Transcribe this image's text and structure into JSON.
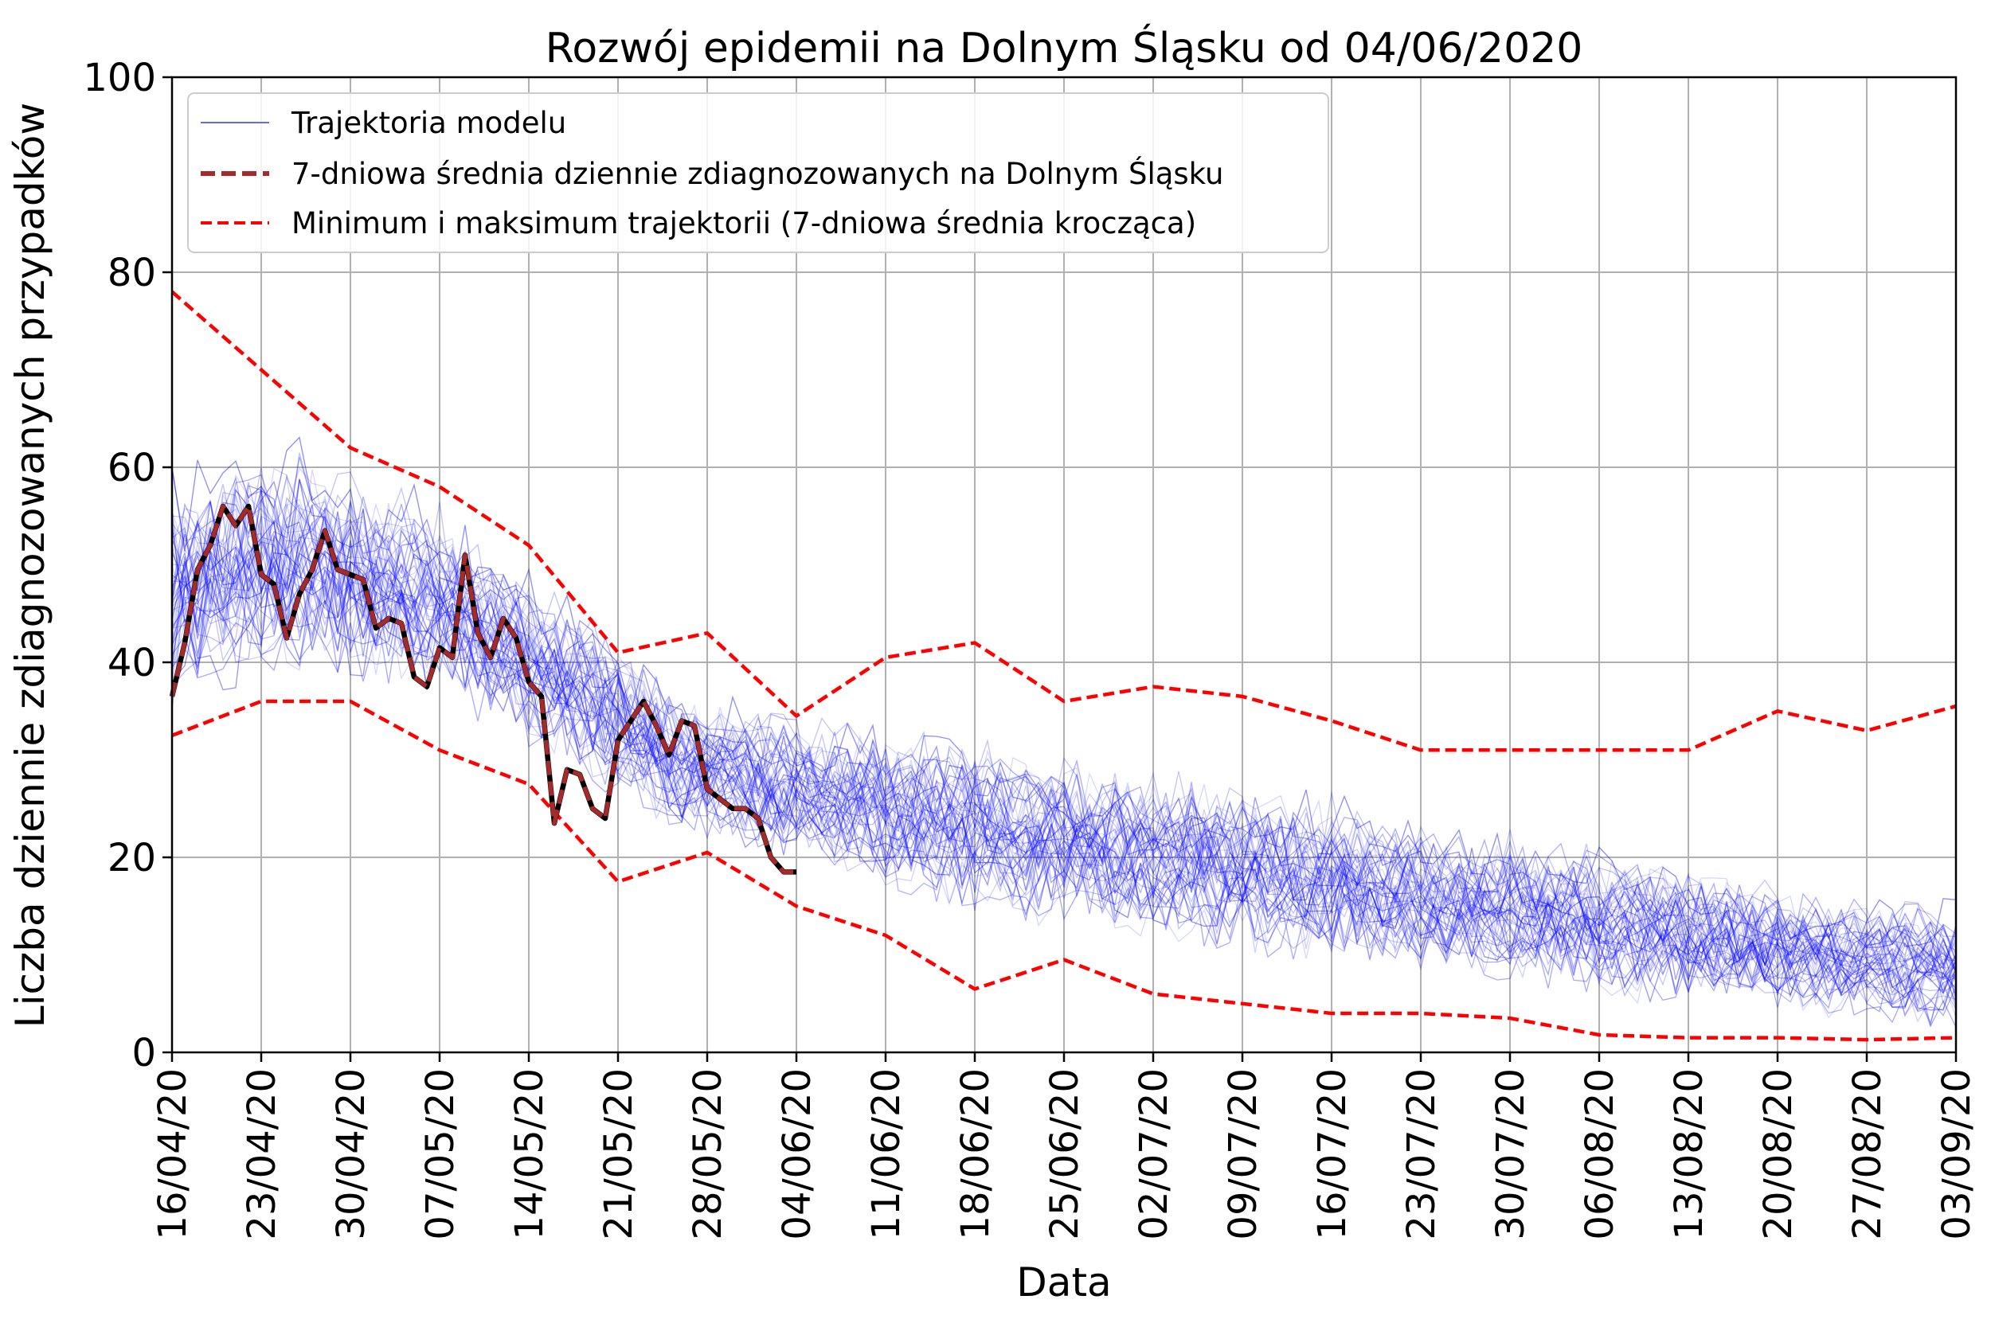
{
  "chart_data": {
    "type": "line",
    "title": "Rozwój epidemii na Dolnym Śląsku od 04/06/2020",
    "xlabel": "Data",
    "ylabel": "Liczba dziennie zdiagnozowanych przypadków",
    "ylim": [
      0,
      100
    ],
    "yticks": [
      "0",
      "20",
      "40",
      "60",
      "80",
      "100"
    ],
    "xticks": [
      "16/04/20",
      "23/04/20",
      "30/04/20",
      "07/05/20",
      "14/05/20",
      "21/05/20",
      "28/05/20",
      "04/06/20",
      "11/06/20",
      "18/06/20",
      "25/06/20",
      "02/07/20",
      "09/07/20",
      "16/07/20",
      "23/07/20",
      "30/07/20",
      "06/08/20",
      "13/08/20",
      "20/08/20",
      "27/08/20",
      "03/09/20"
    ],
    "x_range_days": [
      0,
      140
    ],
    "grid": true,
    "legend_position": "top-left",
    "series": [
      {
        "name": "Trajektoria modelu",
        "style": "thin-solid",
        "color": "#0000ff",
        "count_approx": 50,
        "x_days": [
          0,
          10,
          20,
          30,
          40,
          50,
          60,
          70,
          80,
          90,
          100,
          110,
          120,
          130,
          140
        ],
        "mean_values": [
          48,
          51,
          47,
          39,
          30,
          27,
          24,
          22,
          20,
          18,
          16,
          14,
          12,
          10,
          9
        ],
        "spread_values": [
          10,
          9,
          8,
          7,
          6,
          6,
          7,
          7,
          7,
          7,
          6,
          6,
          6,
          5,
          5
        ]
      },
      {
        "name": "7-dniowa średnia dziennie zdiagnozowanych na Dolnym Śląsku",
        "style": "dashed-thick",
        "color": "#a52a2a",
        "x_days": [
          0,
          1,
          2,
          3,
          4,
          5,
          6,
          7,
          8,
          9,
          10,
          11,
          12,
          13,
          14,
          15,
          16,
          17,
          18,
          19,
          20,
          21,
          22,
          23,
          24,
          25,
          26,
          27,
          28,
          29,
          30,
          31,
          32,
          33,
          34,
          35,
          36,
          37,
          38,
          39,
          40,
          41,
          42,
          43,
          44,
          45,
          46,
          47,
          48,
          49
        ],
        "values": [
          36.5,
          42,
          49.5,
          52,
          56,
          54,
          56,
          49,
          48,
          42.5,
          47,
          49.5,
          53.5,
          49.5,
          49,
          48.5,
          43.5,
          44.5,
          44,
          38.5,
          37.5,
          41.5,
          40.5,
          51,
          43,
          40.5,
          44.5,
          42.5,
          38,
          36.5,
          23.5,
          29,
          28.5,
          25,
          24,
          32,
          34,
          36,
          33.5,
          30.5,
          34,
          33.5,
          27,
          26,
          25,
          25,
          24,
          20,
          18.5,
          18.5
        ]
      },
      {
        "name": "Minimum i maksimum trajektorii (7-dniowa średnia krocząca)",
        "style": "dashed",
        "color": "#ff0000",
        "x_days": [
          0,
          7,
          14,
          21,
          28,
          35,
          42,
          49,
          56,
          63,
          70,
          77,
          84,
          91,
          98,
          105,
          112,
          119,
          126,
          133,
          140
        ],
        "max_values": [
          78,
          70,
          62,
          58,
          52,
          41,
          43,
          34.5,
          40.5,
          42,
          36,
          37.5,
          36.5,
          34,
          31,
          31,
          31,
          31,
          35,
          33,
          35.5
        ],
        "min_values": [
          32.5,
          36,
          36,
          31,
          27.5,
          17.5,
          20.5,
          15,
          12,
          6.5,
          9.5,
          6,
          5,
          4,
          4,
          3.5,
          1.8,
          1.5,
          1.5,
          1.3,
          1.5
        ]
      }
    ]
  }
}
